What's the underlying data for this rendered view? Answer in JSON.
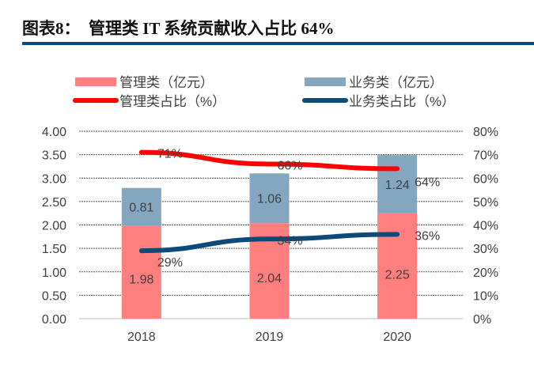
{
  "title": "图表8：  管理类 IT 系统贡献收入占比 64%",
  "chart_data": {
    "type": "bar",
    "stacked": true,
    "categories": [
      "2018",
      "2019",
      "2020"
    ],
    "series": [
      {
        "name": "管理类（亿元）",
        "kind": "bar",
        "axis": "left",
        "color": "#ff7f7f",
        "values": [
          1.98,
          2.04,
          2.25
        ],
        "labels": [
          "1.98",
          "2.04",
          "2.25"
        ]
      },
      {
        "name": "业务类（亿元）",
        "kind": "bar",
        "axis": "left",
        "color": "#84a6bf",
        "values": [
          0.81,
          1.06,
          1.24
        ],
        "labels": [
          "0.81",
          "1.06",
          "1.24"
        ]
      },
      {
        "name": "管理类占比（%）",
        "kind": "line",
        "axis": "right",
        "color": "#ff0000",
        "values": [
          71,
          66,
          64
        ],
        "labels": [
          "71%",
          "66%",
          "64%"
        ]
      },
      {
        "name": "业务类占比（%）",
        "kind": "line",
        "axis": "right",
        "color": "#0d4a7a",
        "values": [
          29,
          34,
          36
        ],
        "labels": [
          "29%",
          "34%",
          "36%"
        ]
      }
    ],
    "ylim_left": [
      0,
      4
    ],
    "ylim_right": [
      0,
      80
    ],
    "yticks_left": [
      "0.00",
      "0.50",
      "1.00",
      "1.50",
      "2.00",
      "2.50",
      "3.00",
      "3.50",
      "4.00"
    ],
    "yticks_right": [
      "0%",
      "10%",
      "20%",
      "30%",
      "40%",
      "50%",
      "60%",
      "70%",
      "80%"
    ],
    "grid": true,
    "legend_placement": "top"
  }
}
